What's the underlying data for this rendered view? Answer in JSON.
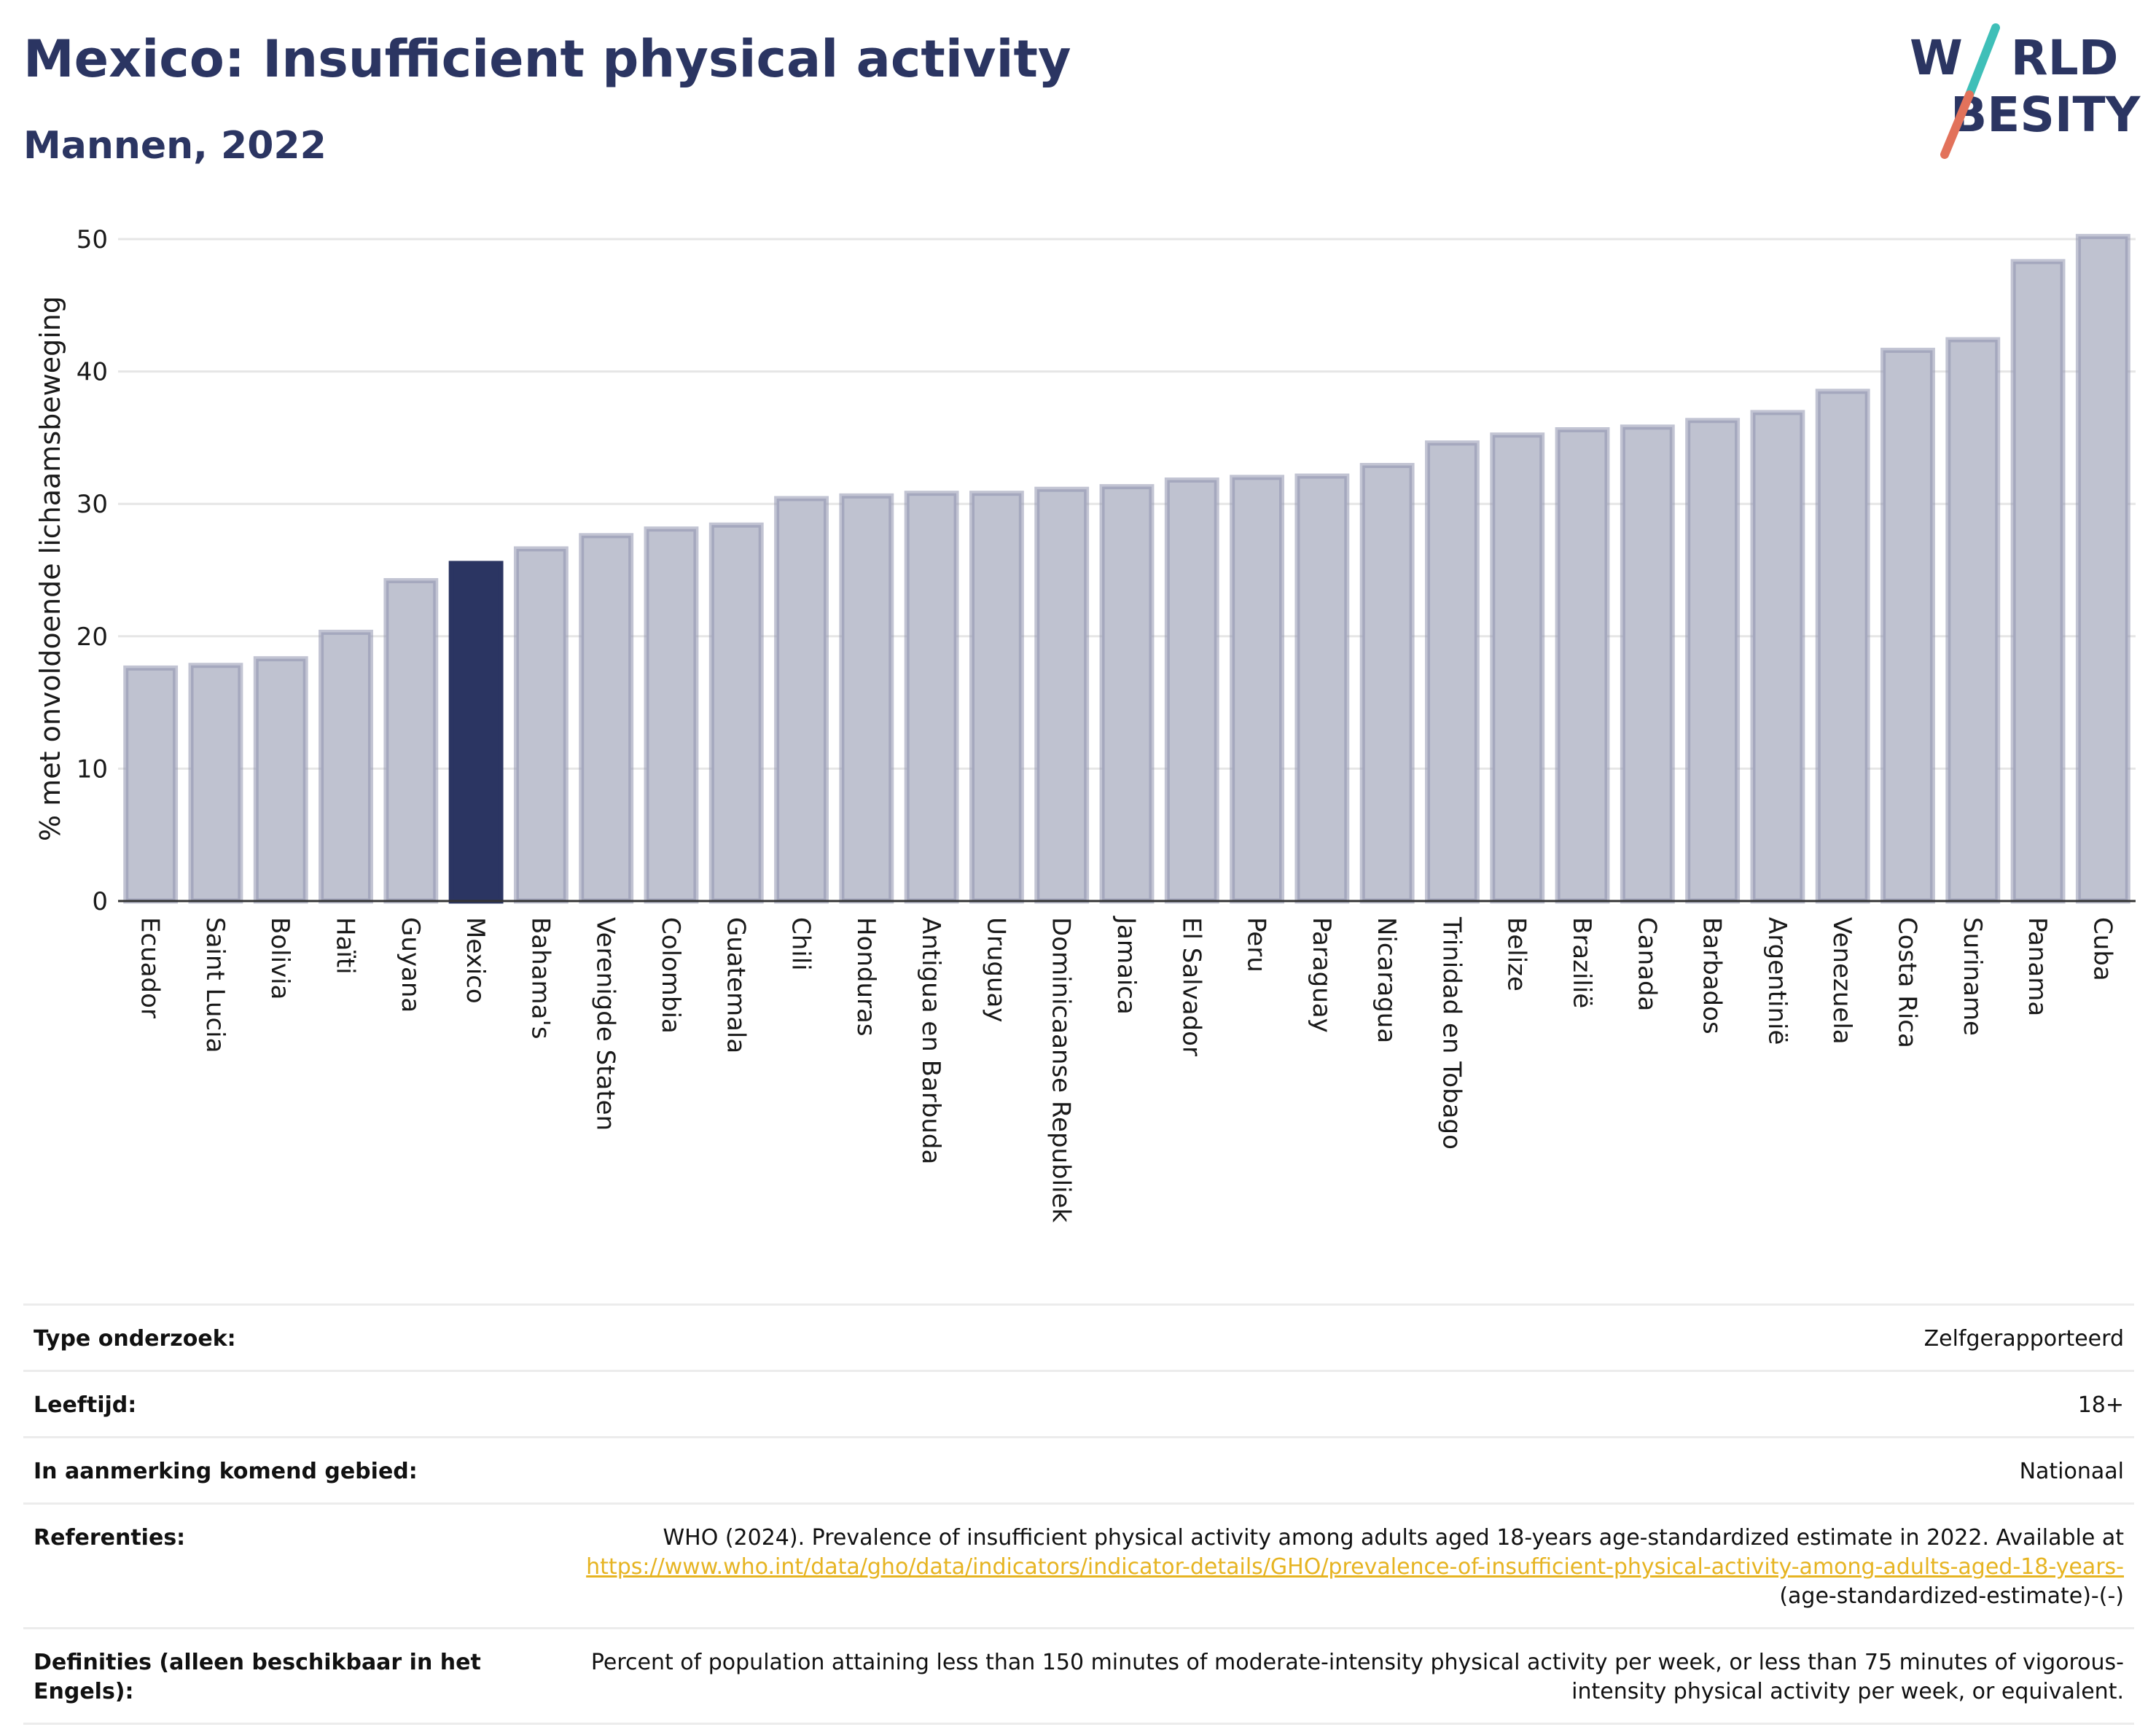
{
  "header": {
    "title": "Mexico: Insufficient physical activity",
    "subtitle": "Mannen, 2022"
  },
  "logo": {
    "line1": "W RLD",
    "line2": " BESITY",
    "text": "WORLD OBESITY"
  },
  "colors": {
    "bar": "#bfc2d0",
    "bar_stroke": "#8f94ae",
    "highlight": "#2b3562",
    "grid": "#e6e6e6",
    "axis": "#333333"
  },
  "chart_data": {
    "type": "bar",
    "ylabel": "% met onvoldoende lichaamsbeweging",
    "ylim": [
      0,
      50
    ],
    "yticks": [
      0,
      10,
      20,
      30,
      40,
      50
    ],
    "highlight": "Mexico",
    "categories": [
      "Ecuador",
      "Saint Lucia",
      "Bolivia",
      "Haïti",
      "Guyana",
      "Mexico",
      "Bahama's",
      "Verenigde Staten",
      "Colombia",
      "Guatemala",
      "Chili",
      "Honduras",
      "Antigua en Barbuda",
      "Uruguay",
      "Dominicaanse Republiek",
      "Jamaica",
      "El Salvador",
      "Peru",
      "Paraguay",
      "Nicaragua",
      "Trinidad en Tobago",
      "Belize",
      "Brazilië",
      "Canada",
      "Barbados",
      "Argentinië",
      "Venezuela",
      "Costa Rica",
      "Suriname",
      "Panama",
      "Cuba"
    ],
    "values": [
      17.6,
      17.8,
      18.3,
      20.3,
      24.2,
      25.5,
      26.6,
      27.6,
      28.1,
      28.4,
      30.4,
      30.6,
      30.8,
      30.8,
      31.1,
      31.3,
      31.8,
      32.0,
      32.1,
      32.9,
      34.6,
      35.2,
      35.6,
      35.8,
      36.3,
      36.9,
      38.5,
      41.6,
      42.4,
      48.3,
      50.2
    ]
  },
  "info": {
    "survey_type": {
      "label": "Type onderzoek:",
      "value": "Zelfgerapporteerd"
    },
    "age": {
      "label": "Leeftijd:",
      "value": "18+"
    },
    "area": {
      "label": "In aanmerking komend gebied:",
      "value": "Nationaal"
    },
    "references": {
      "label": "Referenties:",
      "text": "WHO (2024). Prevalence of insufficient physical activity among adults aged 18-years age-standardized estimate in 2022. Available at",
      "link": "https://www.who.int/data/gho/data/indicators/indicator-details/GHO/prevalence-of-insufficient-physical-activity-among-adults-aged-18-years-",
      "suffix": "(age-standardized-estimate)-(-)"
    },
    "definitions": {
      "label": "Definities (alleen beschikbaar in het Engels):",
      "value": "Percent of population attaining less than 150 minutes of moderate-intensity physical activity per week, or less than 75 minutes of vigorous-intensity physical activity per week, or equivalent."
    }
  }
}
